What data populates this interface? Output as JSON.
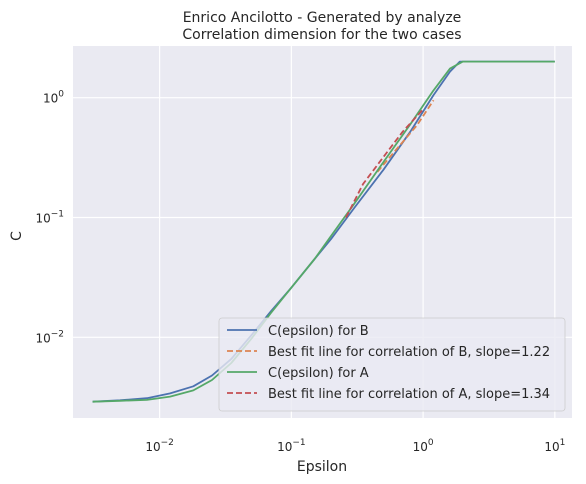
{
  "chart_data": {
    "type": "line",
    "title": "Enrico Ancilotto - Generated by analyze",
    "subtitle": "Correlation dimension for the two cases",
    "xlabel": "Epsilon",
    "ylabel": "C",
    "xscale": "log",
    "yscale": "log",
    "xlim": [
      0.0022,
      13.5
    ],
    "ylim": [
      0.00212,
      2.7
    ],
    "grid": true,
    "legend_position": "lower-right",
    "x_ticks": [
      {
        "base": "10",
        "exp": "−2",
        "value": 0.01
      },
      {
        "base": "10",
        "exp": "−1",
        "value": 0.1
      },
      {
        "base": "10",
        "exp": "0",
        "value": 1
      },
      {
        "base": "10",
        "exp": "1",
        "value": 10
      }
    ],
    "y_ticks": [
      {
        "base": "10",
        "exp": "−2",
        "value": 0.01
      },
      {
        "base": "10",
        "exp": "−1",
        "value": 0.1
      },
      {
        "base": "10",
        "exp": "0",
        "value": 1
      }
    ],
    "series": [
      {
        "name": "C(epsilon) for B",
        "color": "#4c72b0",
        "style": "solid",
        "x": [
          0.0031,
          0.005,
          0.008,
          0.012,
          0.018,
          0.025,
          0.035,
          0.05,
          0.07,
          0.1,
          0.15,
          0.2,
          0.3,
          0.5,
          0.8,
          1.2,
          1.6,
          1.9,
          2.5,
          5,
          10
        ],
        "y": [
          0.0029,
          0.00298,
          0.0031,
          0.0034,
          0.0039,
          0.0048,
          0.0066,
          0.0105,
          0.0165,
          0.026,
          0.045,
          0.066,
          0.12,
          0.25,
          0.52,
          1.05,
          1.65,
          2.0,
          2.0,
          2.0,
          2.0
        ]
      },
      {
        "name": "Best fit line for correlation of B, slope=1.22",
        "color": "#dd8452",
        "style": "dashed",
        "x": [
          0.45,
          0.6,
          0.9,
          1.2
        ],
        "y": [
          0.24,
          0.35,
          0.59,
          0.95
        ]
      },
      {
        "name": "C(epsilon) for A",
        "color": "#55a868",
        "style": "solid",
        "x": [
          0.0031,
          0.005,
          0.008,
          0.012,
          0.018,
          0.025,
          0.035,
          0.05,
          0.07,
          0.1,
          0.15,
          0.2,
          0.3,
          0.5,
          0.8,
          1.2,
          1.6,
          2.0,
          2.5,
          5,
          10
        ],
        "y": [
          0.0029,
          0.00295,
          0.003,
          0.0032,
          0.0036,
          0.0044,
          0.0061,
          0.0098,
          0.016,
          0.026,
          0.045,
          0.07,
          0.13,
          0.29,
          0.6,
          1.15,
          1.75,
          2.0,
          2.0,
          2.0,
          2.0
        ]
      },
      {
        "name": "Best fit line for correlation of A, slope=1.34",
        "color": "#c44e52",
        "style": "dashed",
        "x": [
          0.26,
          0.35,
          0.5,
          0.7,
          1.0
        ],
        "y": [
          0.1,
          0.19,
          0.32,
          0.52,
          0.8
        ]
      }
    ]
  }
}
